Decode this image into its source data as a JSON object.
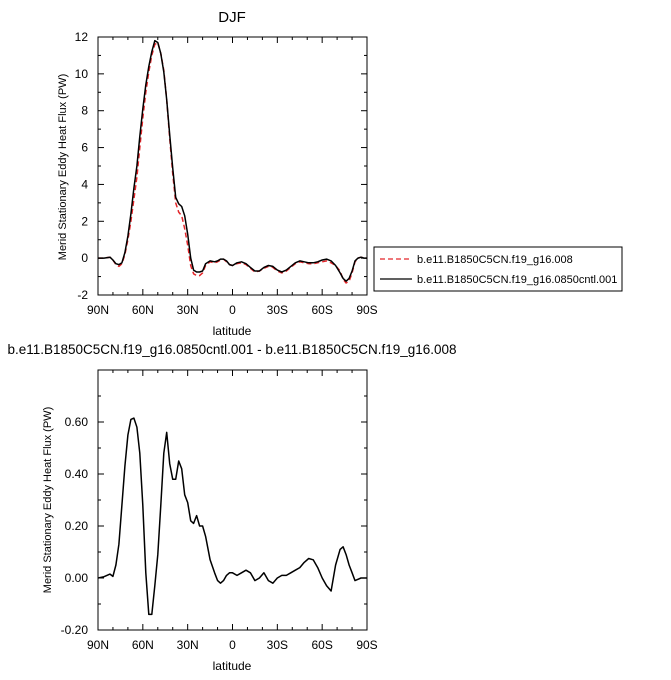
{
  "top_title": "DJF",
  "bottom_title": "b.e11.B1850C5CN.f19_g16.0850cntl.001 - b.e11.B1850C5CN.f19_g16.008",
  "colors": {
    "series_a": "#e3262a",
    "series_b": "#000000"
  },
  "chart_data": [
    {
      "type": "line",
      "title": "DJF",
      "xlabel": "latitude",
      "ylabel": "Merid Stationary Eddy Heat Flux (PW)",
      "xlim": [
        90,
        -90
      ],
      "ylim": [
        -2,
        12
      ],
      "x_ticks": [
        90,
        60,
        30,
        0,
        -30,
        -60,
        -90
      ],
      "x_tick_labels": [
        "90N",
        "60N",
        "30N",
        "0",
        "30S",
        "60S",
        "90S"
      ],
      "y_ticks": [
        -2,
        0,
        2,
        4,
        6,
        8,
        10,
        12
      ],
      "y_tick_labels": [
        "-2",
        "0",
        "2",
        "4",
        "6",
        "8",
        "10",
        "12"
      ],
      "legend": {
        "placement": "outside-right",
        "entries": [
          {
            "name": "b.e11.B1850C5CN.f19_g16.008",
            "style": "dashed",
            "color": "#e3262a"
          },
          {
            "name": "b.e11.B1850C5CN.f19_g16.0850cntl.001",
            "style": "solid",
            "color": "#000000"
          }
        ]
      },
      "series": [
        {
          "name": "b.e11.B1850C5CN.f19_g16.008",
          "style": "dashed",
          "color": "#e3262a",
          "x": [
            90,
            86,
            82,
            80,
            78,
            76,
            74,
            72,
            70,
            68,
            66,
            64,
            62,
            60,
            58,
            56,
            54,
            52,
            50,
            48,
            46,
            44,
            42,
            40,
            38,
            36,
            34,
            32,
            30,
            28,
            26,
            24,
            22,
            20,
            18,
            15,
            12,
            10,
            8,
            6,
            4,
            2,
            0,
            -3,
            -6,
            -9,
            -12,
            -15,
            -18,
            -21,
            -24,
            -27,
            -30,
            -33,
            -36,
            -39,
            -42,
            -45,
            -48,
            -51,
            -54,
            -57,
            -60,
            -63,
            -66,
            -69,
            -72,
            -74,
            -76,
            -78,
            -80,
            -82,
            -84,
            -86,
            -88,
            -90
          ],
          "y": [
            0.0,
            0.0,
            0.05,
            -0.1,
            -0.35,
            -0.45,
            -0.3,
            0.2,
            1.0,
            2.0,
            3.2,
            4.4,
            6.0,
            7.6,
            9.0,
            10.1,
            11.0,
            11.6,
            11.7,
            11.1,
            10.2,
            8.6,
            6.5,
            4.6,
            3.0,
            2.5,
            2.3,
            1.6,
            0.7,
            -0.4,
            -0.85,
            -0.95,
            -0.95,
            -0.8,
            -0.4,
            -0.2,
            -0.25,
            -0.2,
            -0.1,
            -0.05,
            -0.2,
            -0.35,
            -0.4,
            -0.3,
            -0.25,
            -0.35,
            -0.55,
            -0.75,
            -0.7,
            -0.55,
            -0.45,
            -0.5,
            -0.7,
            -0.8,
            -0.7,
            -0.5,
            -0.3,
            -0.2,
            -0.25,
            -0.3,
            -0.3,
            -0.25,
            -0.2,
            -0.15,
            -0.25,
            -0.4,
            -0.7,
            -1.15,
            -1.35,
            -1.25,
            -0.8,
            -0.2,
            0.0,
            0.05,
            0.0,
            0.0
          ]
        },
        {
          "name": "b.e11.B1850C5CN.f19_g16.0850cntl.001",
          "style": "solid",
          "color": "#000000",
          "x": [
            90,
            86,
            82,
            80,
            78,
            76,
            74,
            72,
            70,
            68,
            66,
            64,
            62,
            60,
            58,
            56,
            54,
            52,
            50,
            48,
            46,
            44,
            42,
            40,
            38,
            36,
            34,
            32,
            30,
            28,
            26,
            24,
            22,
            20,
            18,
            15,
            12,
            10,
            8,
            6,
            4,
            2,
            0,
            -3,
            -6,
            -9,
            -12,
            -15,
            -18,
            -21,
            -24,
            -27,
            -30,
            -33,
            -36,
            -39,
            -42,
            -45,
            -48,
            -51,
            -54,
            -57,
            -60,
            -63,
            -66,
            -69,
            -72,
            -74,
            -76,
            -78,
            -80,
            -82,
            -84,
            -86,
            -88,
            -90
          ],
          "y": [
            0.0,
            0.0,
            0.05,
            -0.1,
            -0.3,
            -0.35,
            -0.25,
            0.3,
            1.2,
            2.4,
            3.8,
            5.0,
            6.6,
            8.1,
            9.4,
            10.4,
            11.2,
            11.8,
            11.7,
            11.1,
            10.1,
            8.6,
            6.7,
            4.9,
            3.3,
            2.95,
            2.8,
            2.3,
            1.3,
            0.0,
            -0.65,
            -0.75,
            -0.75,
            -0.7,
            -0.3,
            -0.15,
            -0.2,
            -0.15,
            -0.05,
            -0.05,
            -0.15,
            -0.35,
            -0.4,
            -0.25,
            -0.2,
            -0.3,
            -0.5,
            -0.7,
            -0.7,
            -0.5,
            -0.4,
            -0.45,
            -0.65,
            -0.75,
            -0.65,
            -0.45,
            -0.25,
            -0.15,
            -0.2,
            -0.25,
            -0.25,
            -0.2,
            -0.1,
            -0.05,
            -0.15,
            -0.4,
            -0.8,
            -1.1,
            -1.25,
            -1.1,
            -0.7,
            -0.15,
            0.0,
            0.05,
            0.0,
            0.0
          ]
        }
      ]
    },
    {
      "type": "line",
      "title": "b.e11.B1850C5CN.f19_g16.0850cntl.001 - b.e11.B1850C5CN.f19_g16.008",
      "xlabel": "latitude",
      "ylabel": "Merid Stationary Eddy Heat Flux (PW)",
      "xlim": [
        90,
        -90
      ],
      "ylim": [
        -0.2,
        0.8
      ],
      "x_ticks": [
        90,
        60,
        30,
        0,
        -30,
        -60,
        -90
      ],
      "x_tick_labels": [
        "90N",
        "60N",
        "30N",
        "0",
        "30S",
        "60S",
        "90S"
      ],
      "y_ticks": [
        -0.2,
        0.0,
        0.2,
        0.4,
        0.6
      ],
      "y_tick_labels": [
        "-0.20",
        "0.00",
        "0.20",
        "0.40",
        "0.60"
      ],
      "series": [
        {
          "style": "solid",
          "color": "#000000",
          "x": [
            90,
            86,
            82,
            80,
            78,
            76,
            74,
            72,
            70,
            68,
            66,
            64,
            62,
            60,
            58,
            56,
            54,
            52,
            50,
            48,
            46,
            44,
            42,
            40,
            38,
            36,
            34,
            32,
            30,
            28,
            26,
            24,
            22,
            20,
            18,
            15,
            12,
            10,
            8,
            6,
            4,
            2,
            0,
            -3,
            -6,
            -9,
            -12,
            -15,
            -18,
            -21,
            -24,
            -27,
            -30,
            -33,
            -36,
            -39,
            -42,
            -45,
            -48,
            -51,
            -54,
            -57,
            -60,
            -63,
            -66,
            -69,
            -72,
            -74,
            -76,
            -78,
            -80,
            -82,
            -84,
            -86,
            -88,
            -90
          ],
          "y": [
            0.0,
            0.005,
            0.015,
            0.006,
            0.05,
            0.13,
            0.28,
            0.43,
            0.55,
            0.61,
            0.615,
            0.58,
            0.48,
            0.28,
            0.02,
            -0.14,
            -0.14,
            -0.03,
            0.09,
            0.28,
            0.48,
            0.56,
            0.44,
            0.38,
            0.38,
            0.45,
            0.42,
            0.32,
            0.29,
            0.22,
            0.21,
            0.24,
            0.2,
            0.2,
            0.16,
            0.07,
            0.02,
            -0.01,
            -0.02,
            -0.01,
            0.01,
            0.02,
            0.02,
            0.01,
            0.02,
            0.03,
            0.02,
            -0.01,
            0.0,
            0.02,
            -0.01,
            -0.02,
            0.0,
            0.01,
            0.01,
            0.02,
            0.03,
            0.04,
            0.06,
            0.075,
            0.07,
            0.04,
            0.0,
            -0.03,
            -0.05,
            0.05,
            0.11,
            0.12,
            0.09,
            0.05,
            0.02,
            -0.01,
            -0.005,
            0.0,
            0.0,
            0.0
          ]
        }
      ]
    }
  ]
}
